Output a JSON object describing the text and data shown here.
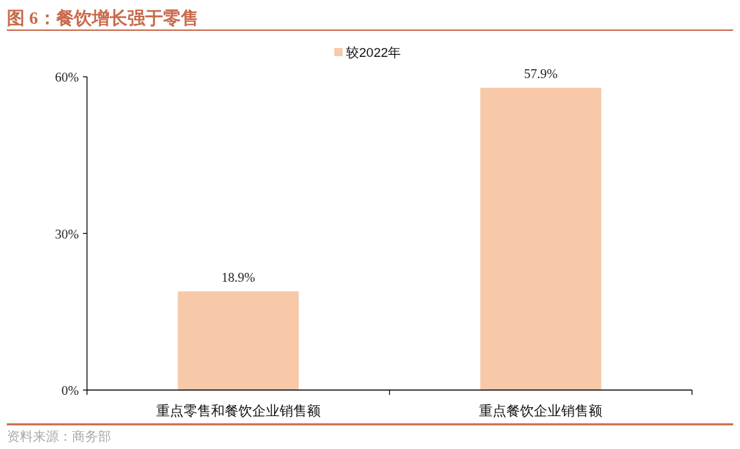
{
  "chart_data": {
    "type": "bar",
    "title": "图 6：餐饮增长强于零售",
    "categories": [
      "重点零售和餐饮企业销售额",
      "重点餐饮企业销售额"
    ],
    "series": [
      {
        "name": "较2022年",
        "color": "#f7c9a9",
        "values": [
          18.9,
          57.9
        ],
        "value_labels": [
          "18.9%",
          "57.9%"
        ]
      }
    ],
    "ylim": [
      0,
      60
    ],
    "yticks": [
      {
        "value": 0,
        "label": "0%"
      },
      {
        "value": 30,
        "label": "30%"
      },
      {
        "value": 60,
        "label": "60%"
      }
    ],
    "legend": "top",
    "grid": false,
    "annotations": [
      "资料来源：商务部"
    ]
  }
}
